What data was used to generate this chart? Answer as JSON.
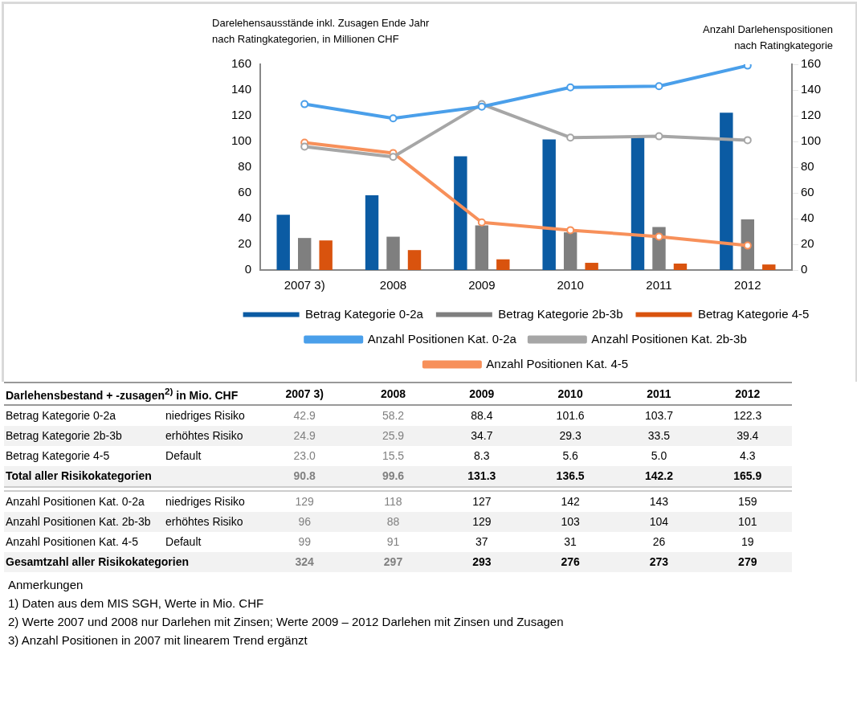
{
  "chart_data": {
    "type": "bar",
    "ylabel": "Darelehensausstände inkl. Zusagen Ende Jahr\nnach Ratingkategorien, in Millionen CHF",
    "y2label": "Anzahl Darlehenspositionen\nnach Ratingkategorie",
    "categories": [
      "2007 3)",
      "2008",
      "2009",
      "2010",
      "2011",
      "2012"
    ],
    "series": [
      {
        "name": "Betrag Kategorie 0-2a",
        "color": "#0b5ba3",
        "values": [
          42.9,
          58.2,
          88.4,
          101.6,
          103.7,
          122.3
        ],
        "value_labels": [
          "42.9",
          "58.2",
          "88.4",
          "101.6",
          "103.7",
          "122.3"
        ]
      },
      {
        "name": "Betrag Kategorie 2b-3b",
        "color": "#7f7f7f",
        "values": [
          24.9,
          25.9,
          34.7,
          29.3,
          33.5,
          39.4
        ],
        "value_labels": [
          "24.9",
          "25.9",
          "34.7",
          "29.3",
          "33.5",
          "39.4"
        ]
      },
      {
        "name": "Betrag Kategorie 4-5",
        "color": "#d9530e",
        "values": [
          23.0,
          15.5,
          8.3,
          5.6,
          5.0,
          4.3
        ],
        "value_labels": [
          "23.0",
          "15.5",
          "8.3",
          "5.6",
          "5.0",
          "4.3"
        ]
      },
      {
        "name": "Anzahl Positionen Kat. 0-2a",
        "type": "line",
        "axis": "y2",
        "color": "#4a9fea",
        "values": [
          129,
          118,
          127,
          142,
          143,
          159
        ],
        "value_labels": [
          "129",
          "118",
          "127",
          "142",
          "143",
          "159"
        ]
      },
      {
        "name": "Anzahl Positionen Kat. 2b-3b",
        "type": "line",
        "axis": "y2",
        "color": "#a6a6a6",
        "values": [
          96,
          88,
          129,
          103,
          104,
          101
        ],
        "value_labels": [
          "96",
          "88",
          "129",
          "103",
          "104",
          "101"
        ]
      },
      {
        "name": "Anzahl Positionen Kat. 4-5",
        "type": "line",
        "axis": "y2",
        "color": "#f7905a",
        "values": [
          99,
          91,
          37,
          31,
          26,
          19
        ],
        "value_labels": [
          "99",
          "91",
          "37",
          "31",
          "26",
          "19"
        ]
      }
    ],
    "ylim": [
      0,
      160
    ],
    "yticks": [
      0,
      20,
      40,
      60,
      80,
      100,
      120,
      140,
      160
    ],
    "y2lim": [
      0,
      160
    ],
    "y2ticks": [
      0,
      20,
      40,
      60,
      80,
      100,
      120,
      140,
      160
    ],
    "grid": false,
    "legend": "bottom",
    "marker": "circle",
    "line_style": "solid",
    "annotations": [
      "Darlehensbestand + -zusagen$^{2)}$ in Mio. CHF",
      "niedriges Risiko",
      "erhöhtes Risiko",
      "Default",
      "Total aller Risikokategorien",
      "90.8",
      "99.6",
      "131.3",
      "136.5",
      "142.2",
      "165.9",
      "Gesamtzahl aller Risikokategorien",
      "324",
      "297",
      "293",
      "276",
      "273",
      "279",
      "Anmerkungen",
      "1) Daten aus dem MIS SGH, Werte in Mio. CHF",
      "2) Werte 2007 und 2008 nur Darlehen mit Zinsen; Werte 2009 – 2012 Darlehen mit Zinsen und  Zusagen",
      "3) Anzahl Positionen in 2007 mit linearem Trend ergänzt"
    ]
  }
}
